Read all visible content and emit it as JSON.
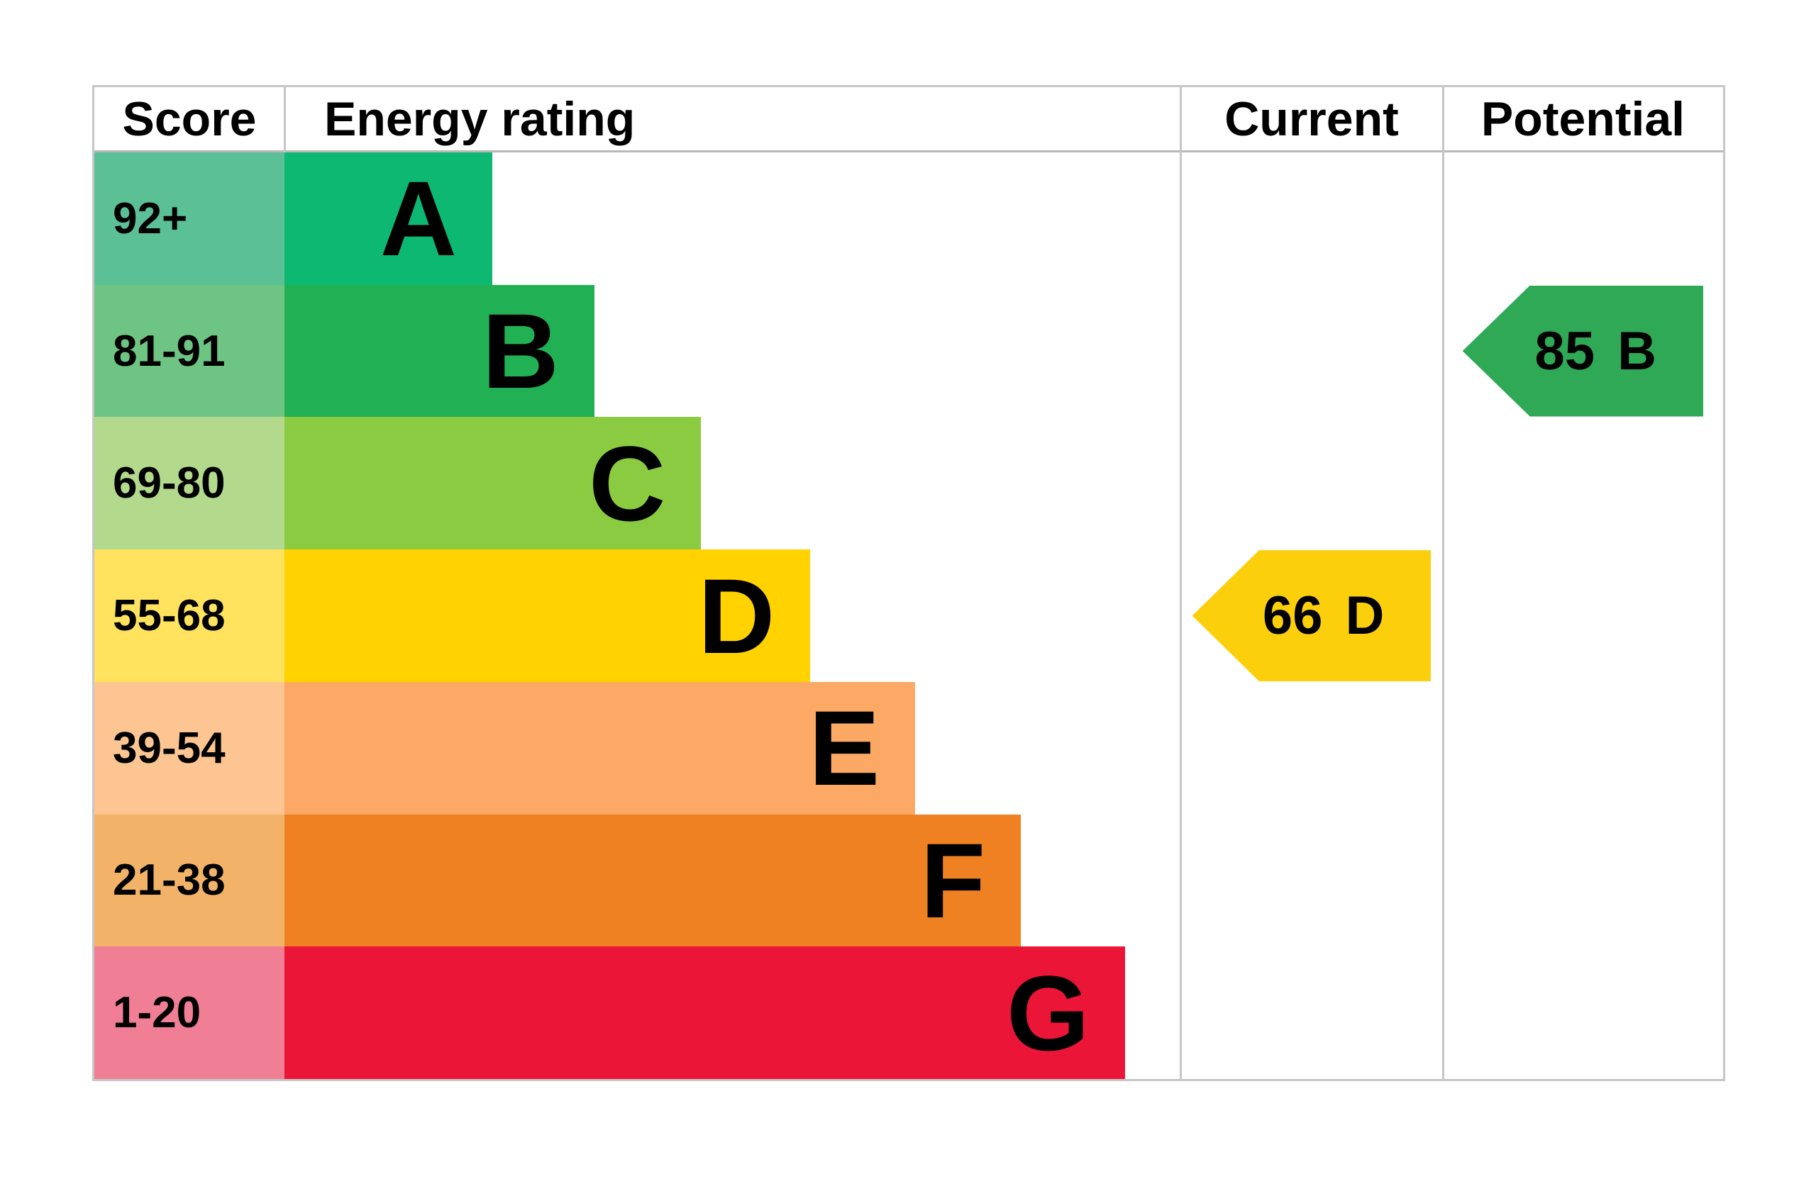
{
  "header": {
    "score": "Score",
    "energy_rating": "Energy rating",
    "current": "Current",
    "potential": "Potential"
  },
  "bands": [
    {
      "rating": "A",
      "score": "92+",
      "width": "23.2%",
      "bar_color": "#0db873",
      "score_bg": "#5cc096"
    },
    {
      "rating": "B",
      "score": "81-91",
      "width": "34.6%",
      "bar_color": "#22b055",
      "score_bg": "#6ec583"
    },
    {
      "rating": "C",
      "score": "69-80",
      "width": "46.5%",
      "bar_color": "#8acb42",
      "score_bg": "#b3d98c"
    },
    {
      "rating": "D",
      "score": "55-68",
      "width": "58.7%",
      "bar_color": "#ffd200",
      "score_bg": "#ffe25e"
    },
    {
      "rating": "E",
      "score": "39-54",
      "width": "70.4%",
      "bar_color": "#fba965",
      "score_bg": "#fcc591"
    },
    {
      "rating": "F",
      "score": "21-38",
      "width": "82.2%",
      "bar_color": "#ef8123",
      "score_bg": "#f2b369"
    },
    {
      "rating": "G",
      "score": "1-20",
      "width": "93.8%",
      "bar_color": "#ea1537",
      "score_bg": "#f07e95"
    }
  ],
  "current": {
    "score": "66",
    "rating": "D",
    "color": "#fccf0c"
  },
  "potential": {
    "score": "85",
    "rating": "B",
    "color": "#2fa956"
  },
  "colors": {
    "border": "#c6c6c6",
    "header_underline": "#b8b8b8",
    "text": "#000000",
    "background": "#ffffff"
  },
  "chart_data": {
    "type": "bar",
    "title": "EPC energy efficiency rating chart",
    "columns": [
      "Score",
      "Energy rating",
      "Current",
      "Potential"
    ],
    "categories": [
      "A",
      "B",
      "C",
      "D",
      "E",
      "F",
      "G"
    ],
    "score_ranges": [
      "92+",
      "81-91",
      "69-80",
      "55-68",
      "39-54",
      "21-38",
      "1-20"
    ],
    "bar_relative_widths": [
      0.232,
      0.346,
      0.465,
      0.587,
      0.704,
      0.822,
      0.938
    ],
    "band_colors": [
      "#0db873",
      "#22b055",
      "#8acb42",
      "#ffd200",
      "#fba965",
      "#ef8123",
      "#ea1537"
    ],
    "current": {
      "score": 66,
      "rating": "D",
      "column": "Current"
    },
    "potential": {
      "score": 85,
      "rating": "B",
      "column": "Potential"
    },
    "legend_position": "none",
    "grid": false
  }
}
